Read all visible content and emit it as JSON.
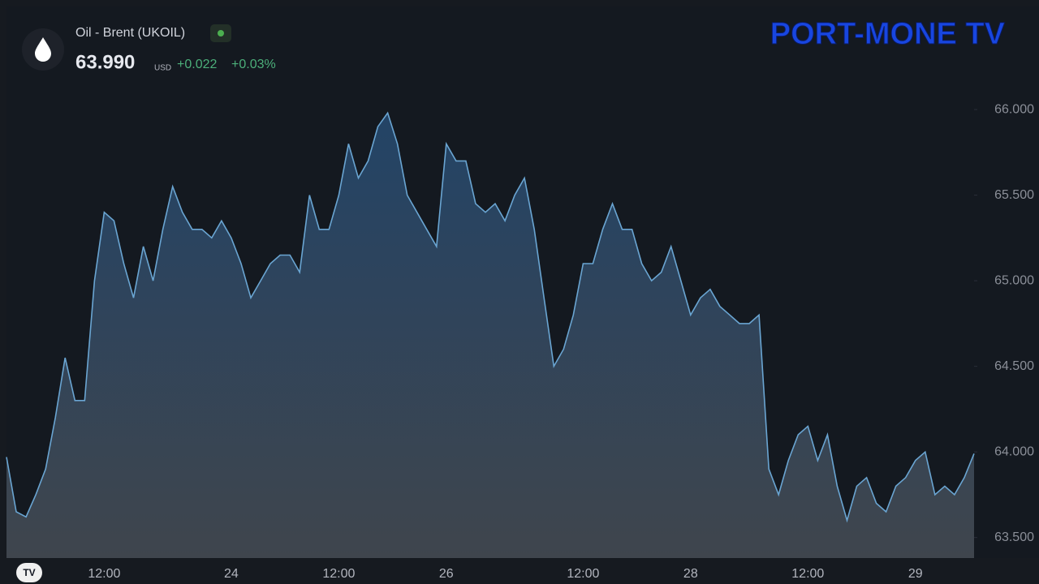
{
  "header": {
    "symbol": "Oil - Brent (UKOIL)",
    "price": "63.990",
    "currency": "USD",
    "change": "+0.022",
    "change_pct": "+0.03%"
  },
  "logo": "PORT-MONE TV",
  "chart_data": {
    "type": "area",
    "color": "#6aa5d2",
    "categories": [
      null,
      null,
      null,
      null,
      null,
      null,
      null,
      null,
      null,
      null,
      "12:00",
      null,
      null,
      null,
      null,
      null,
      null,
      null,
      null,
      null,
      null,
      null,
      null,
      "24",
      null,
      null,
      null,
      null,
      null,
      null,
      null,
      null,
      null,
      null,
      "12:00",
      null,
      null,
      null,
      null,
      null,
      null,
      null,
      null,
      null,
      null,
      "26",
      null,
      null,
      null,
      null,
      null,
      null,
      null,
      null,
      null,
      null,
      null,
      null,
      null,
      "12:00",
      null,
      null,
      null,
      null,
      null,
      null,
      null,
      null,
      null,
      null,
      "28",
      null,
      null,
      null,
      null,
      null,
      null,
      null,
      null,
      null,
      null,
      null,
      "12:00",
      null,
      null,
      null,
      null,
      null,
      null,
      null,
      null,
      null,
      null,
      "29",
      null,
      null,
      null,
      null,
      null,
      null
    ],
    "values": [
      63.97,
      63.65,
      63.62,
      63.75,
      63.9,
      64.2,
      64.55,
      64.3,
      64.3,
      65.0,
      65.4,
      65.35,
      65.1,
      64.9,
      65.2,
      65.0,
      65.3,
      65.55,
      65.4,
      65.3,
      65.3,
      65.25,
      65.35,
      65.25,
      65.1,
      64.9,
      65.0,
      65.1,
      65.15,
      65.15,
      65.05,
      65.5,
      65.3,
      65.3,
      65.5,
      65.8,
      65.6,
      65.7,
      65.9,
      65.98,
      65.8,
      65.5,
      65.4,
      65.3,
      65.2,
      65.8,
      65.7,
      65.7,
      65.45,
      65.4,
      65.45,
      65.35,
      65.5,
      65.6,
      65.3,
      64.9,
      64.5,
      64.6,
      64.8,
      65.1,
      65.1,
      65.3,
      65.45,
      65.3,
      65.3,
      65.1,
      65.0,
      65.05,
      65.2,
      65.0,
      64.8,
      64.9,
      64.95,
      64.85,
      64.8,
      64.75,
      64.75,
      64.8,
      63.9,
      63.75,
      63.95,
      64.1,
      64.15,
      63.95,
      64.1,
      63.8,
      63.6,
      63.8,
      63.85,
      63.7,
      63.65,
      63.8,
      63.85,
      63.95,
      64.0,
      63.75,
      63.8,
      63.75,
      63.85,
      63.99
    ],
    "ylim": [
      63.38,
      66.64
    ],
    "yticks": [
      {
        "value": 63.5,
        "label": "63.500"
      },
      {
        "value": 64,
        "label": "64.000"
      },
      {
        "value": 64.5,
        "label": "64.500"
      },
      {
        "value": 65,
        "label": "65.000"
      },
      {
        "value": 65.5,
        "label": "65.500"
      },
      {
        "value": 66,
        "label": "66.000"
      }
    ]
  }
}
